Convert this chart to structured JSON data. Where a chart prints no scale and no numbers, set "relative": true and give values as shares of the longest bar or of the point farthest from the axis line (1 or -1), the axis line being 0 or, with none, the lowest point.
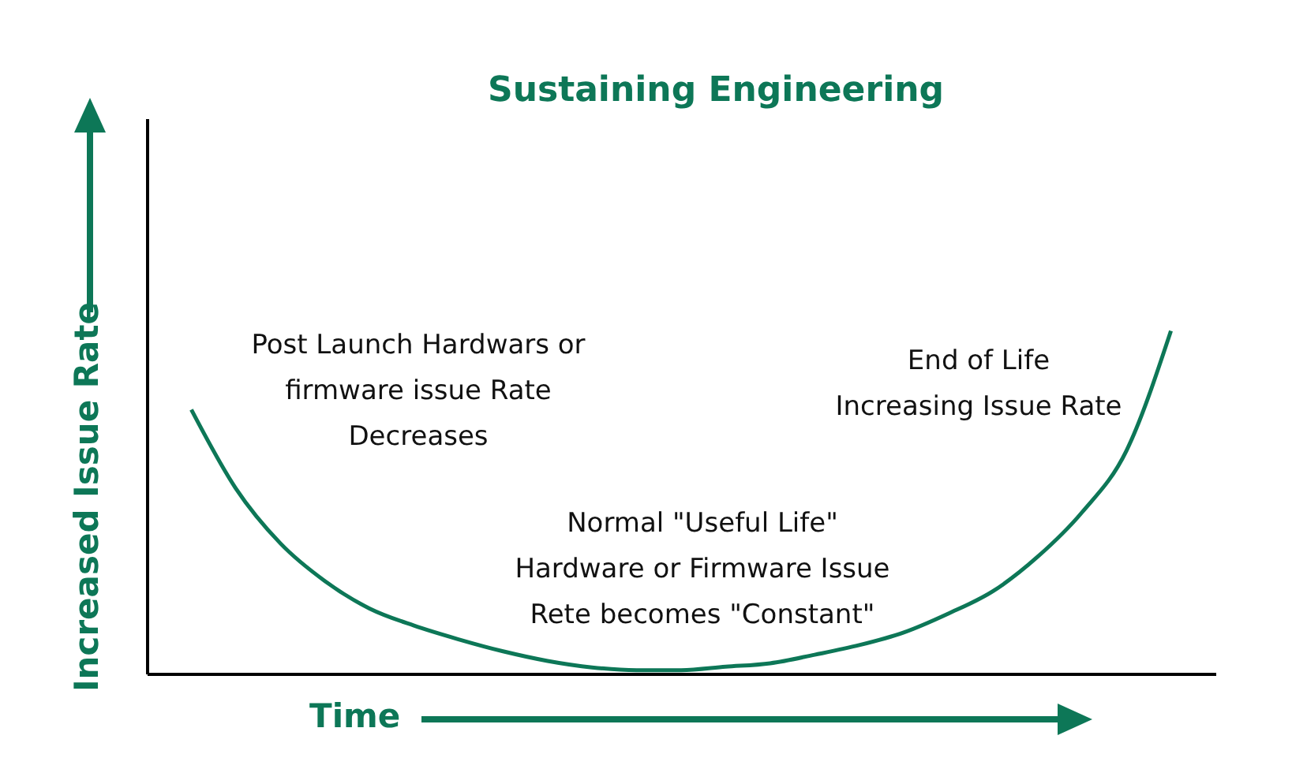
{
  "chart_data": {
    "type": "line",
    "title": "Sustaining Engineering",
    "xlabel": "Time",
    "ylabel": "Increased Issue Rate",
    "relative": true,
    "annotations": [
      "Post Launch Hardwars or\nfirmware issue Rate\nDecreases",
      "End of Life\nIncreasing Issue Rate",
      "Normal \"Useful Life\"\nHardware or Firmware Issue\nRete becomes \"Constant\""
    ],
    "categories": [
      null,
      null,
      null,
      null,
      null,
      null,
      null,
      null,
      null,
      null,
      null,
      null,
      null,
      null,
      null,
      null,
      null,
      null,
      null,
      null,
      null,
      null,
      null,
      null,
      null
    ],
    "series": [
      {
        "color": "#0d7757",
        "values": [
          null,
          0.77,
          0.54,
          0.38,
          0.27,
          0.19,
          0.14,
          0.1,
          0.065,
          0.037,
          0.018,
          0.01,
          0.01,
          0.02,
          0.03,
          0.055,
          0.083,
          0.12,
          0.175,
          0.24,
          0.34,
          0.47,
          0.65,
          1,
          null
        ]
      }
    ]
  }
}
